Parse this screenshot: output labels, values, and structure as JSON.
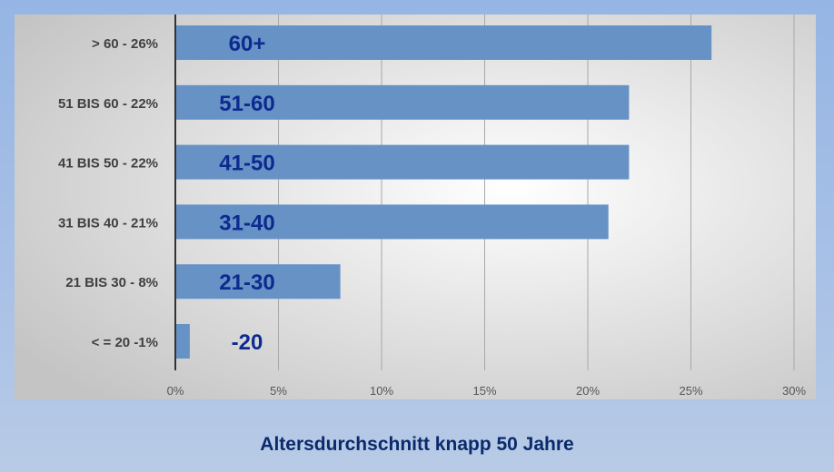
{
  "chart_data": {
    "type": "bar",
    "orientation": "horizontal",
    "categories": [
      "> 60 - 26%",
      "51 BIS 60 - 22%",
      "41 BIS 50 - 22%",
      "31 BIS 40 - 21%",
      "21 BIS 30 - 8%",
      "< = 20 -1%"
    ],
    "bar_labels": [
      "60+",
      "51-60",
      "41-50",
      "31-40",
      "21-30",
      "-20"
    ],
    "values": [
      26,
      22,
      22,
      21,
      8,
      0.7
    ],
    "xlim": [
      0,
      30
    ],
    "xticks": [
      "0%",
      "5%",
      "10%",
      "15%",
      "20%",
      "25%",
      "30%"
    ],
    "grid": "vertical",
    "legend": "none",
    "bar_color": "#6792c6",
    "bar_label_color": "#0d2a8f"
  },
  "caption": "Altersdurchschnitt knapp 50 Jahre"
}
